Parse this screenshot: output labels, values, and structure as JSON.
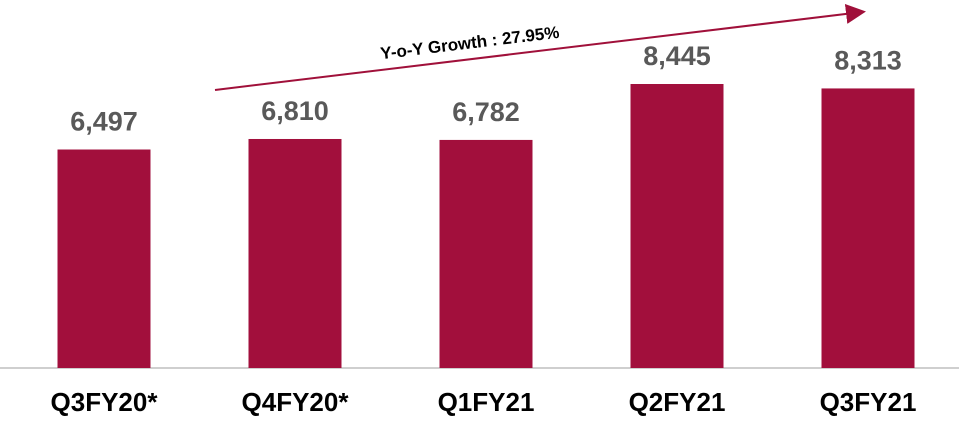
{
  "chart_data": {
    "type": "bar",
    "categories": [
      "Q3FY20*",
      "Q4FY20*",
      "Q1FY21",
      "Q2FY21",
      "Q3FY21"
    ],
    "values": [
      6497,
      6810,
      6782,
      8445,
      8313
    ],
    "value_labels": [
      "6,497",
      "6,810",
      "6,782",
      "8,445",
      "8,313"
    ],
    "color": "#a20f3c",
    "annotation": "Y-o-Y Growth : 27.95%"
  }
}
